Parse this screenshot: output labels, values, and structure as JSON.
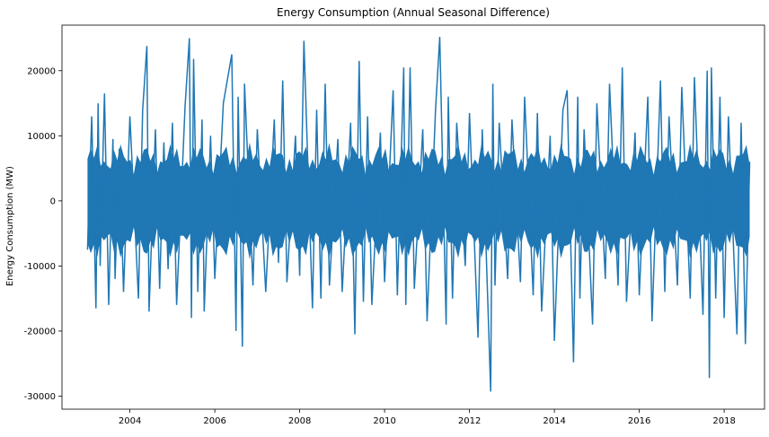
{
  "chart_data": {
    "type": "line",
    "title": "Energy Consumption (Annual Seasonal Difference)",
    "xlabel": "",
    "ylabel": "Energy Consumption (MW)",
    "xlim": [
      2002.4,
      2018.95
    ],
    "ylim": [
      -32000,
      27000
    ],
    "x_ticks": [
      "2004",
      "2006",
      "2008",
      "2010",
      "2012",
      "2014",
      "2016",
      "2018"
    ],
    "y_ticks": [
      "20000",
      "10000",
      "0",
      "-10000",
      "-20000",
      "-30000"
    ],
    "grid": false,
    "legend": "none",
    "colors": {
      "line": "#1f77b4"
    },
    "series": [
      {
        "x": [
          2003.0,
          2003.1,
          2003.2,
          2003.25,
          2003.3,
          2003.4,
          2003.5,
          2003.6,
          2003.65,
          2003.75,
          2003.85,
          2004.0,
          2004.2,
          2004.3,
          2004.4,
          2004.45,
          2004.6,
          2004.7,
          2004.8,
          2004.9,
          2005.0,
          2005.1,
          2005.3,
          2005.4,
          2005.45,
          2005.5,
          2005.6,
          2005.7,
          2005.75,
          2005.9,
          2006.0,
          2006.2,
          2006.4,
          2006.5,
          2006.55,
          2006.65,
          2006.7,
          2006.9,
          2007.0,
          2007.2,
          2007.4,
          2007.5,
          2007.6,
          2007.7,
          2007.9,
          2008.0,
          2008.1,
          2008.3,
          2008.4,
          2008.5,
          2008.6,
          2008.7,
          2008.9,
          2009.0,
          2009.2,
          2009.3,
          2009.4,
          2009.5,
          2009.6,
          2009.7,
          2009.9,
          2010.0,
          2010.2,
          2010.3,
          2010.45,
          2010.5,
          2010.6,
          2010.7,
          2010.9,
          2011.0,
          2011.2,
          2011.3,
          2011.45,
          2011.5,
          2011.6,
          2011.7,
          2011.9,
          2012.0,
          2012.2,
          2012.3,
          2012.5,
          2012.55,
          2012.6,
          2012.7,
          2012.9,
          2013.0,
          2013.2,
          2013.3,
          2013.5,
          2013.6,
          2013.7,
          2013.9,
          2014.0,
          2014.2,
          2014.3,
          2014.45,
          2014.55,
          2014.6,
          2014.7,
          2014.9,
          2015.0,
          2015.2,
          2015.3,
          2015.5,
          2015.6,
          2015.7,
          2015.9,
          2016.0,
          2016.2,
          2016.3,
          2016.5,
          2016.6,
          2016.7,
          2016.9,
          2017.0,
          2017.2,
          2017.3,
          2017.5,
          2017.6,
          2017.65,
          2017.7,
          2017.8,
          2017.9,
          2018.0,
          2018.1,
          2018.3,
          2018.4,
          2018.5,
          2018.6
        ],
        "y": [
          -7500,
          13000,
          -16500,
          15000,
          -10000,
          16500,
          -16000,
          9500,
          -12000,
          8000,
          -14000,
          13000,
          -15000,
          14000,
          23800,
          -17000,
          11000,
          -13500,
          9000,
          -10500,
          12000,
          -16000,
          14500,
          25000,
          -18000,
          21800,
          -14000,
          12500,
          -17000,
          10000,
          -12000,
          15000,
          22500,
          -20000,
          16000,
          -22400,
          18000,
          -13000,
          11000,
          -14000,
          12500,
          -9500,
          18500,
          -12500,
          10000,
          -11500,
          24600,
          -16500,
          14000,
          -15000,
          18000,
          -13000,
          9500,
          -14000,
          12000,
          -20500,
          21500,
          -15500,
          13000,
          -16000,
          10500,
          -12500,
          17000,
          -14500,
          20500,
          -16000,
          20500,
          -13500,
          11000,
          -18500,
          14000,
          25200,
          -19000,
          16000,
          -15000,
          12000,
          -10000,
          13500,
          -21000,
          11000,
          -29300,
          18000,
          -13000,
          12000,
          -12000,
          12500,
          -12500,
          16000,
          -14500,
          13500,
          -17000,
          10000,
          -21500,
          14000,
          17000,
          -24800,
          16000,
          -15000,
          11000,
          -19000,
          15000,
          -12000,
          18000,
          -13000,
          20500,
          -15500,
          10500,
          -14500,
          16000,
          -18500,
          18500,
          -14000,
          13000,
          -13000,
          17500,
          -15000,
          19000,
          -17500,
          20000,
          -27200,
          20500,
          -15000,
          16000,
          -18000,
          13000,
          -20500,
          12000,
          -22000,
          6000
        ]
      }
    ]
  }
}
